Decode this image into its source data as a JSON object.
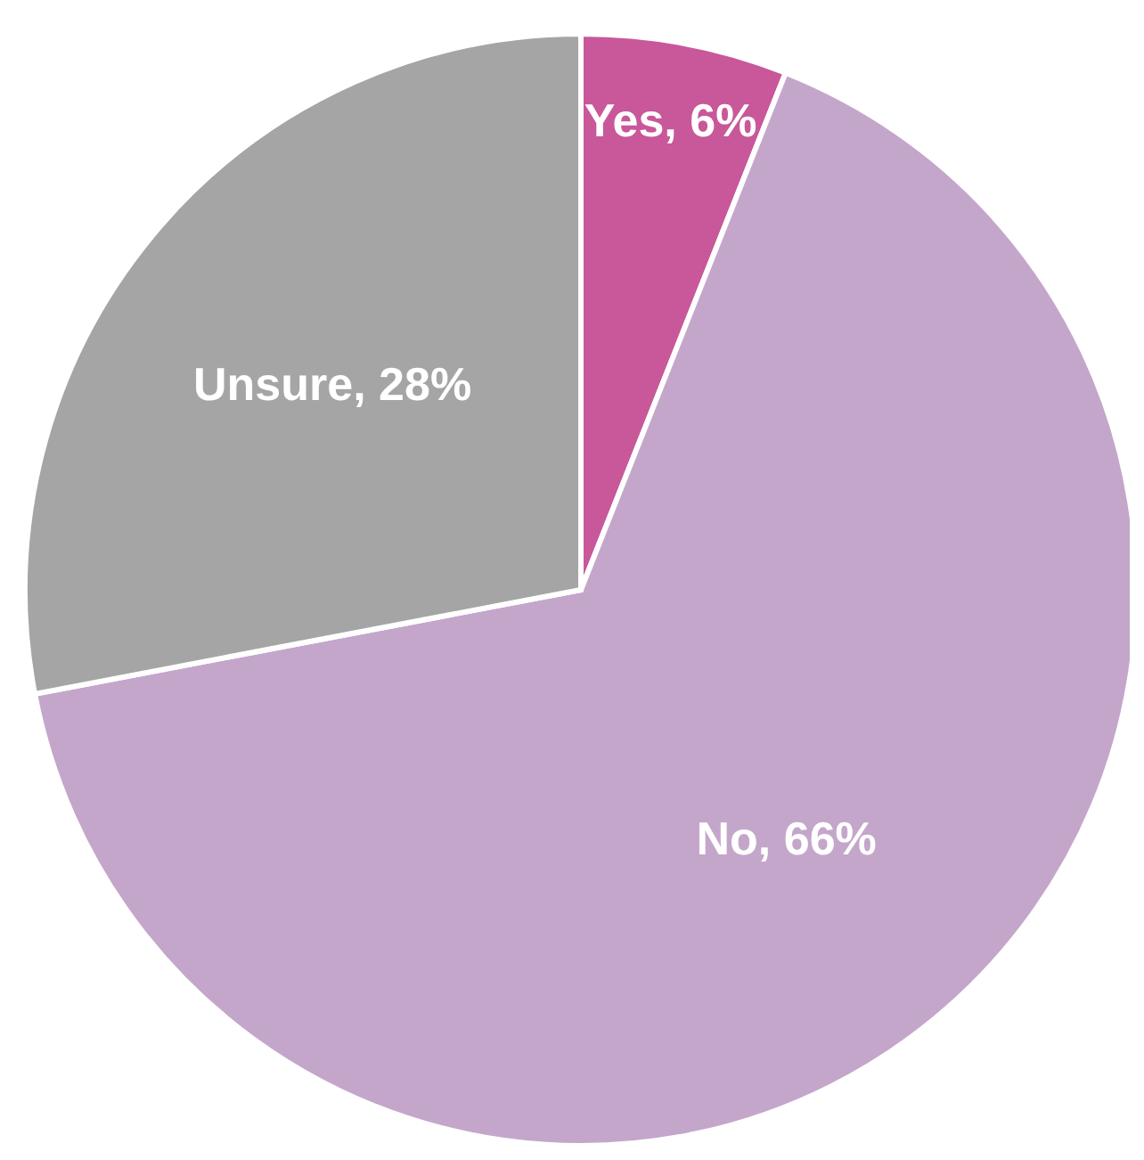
{
  "chart_data": {
    "type": "pie",
    "categories": [
      "Yes",
      "No",
      "Unsure"
    ],
    "values": [
      6,
      66,
      28
    ],
    "colors": [
      "#c8589a",
      "#c4a6cb",
      "#a5a5a5"
    ],
    "value_labels": [
      "6%",
      "66%",
      "28%"
    ],
    "legend": false
  }
}
